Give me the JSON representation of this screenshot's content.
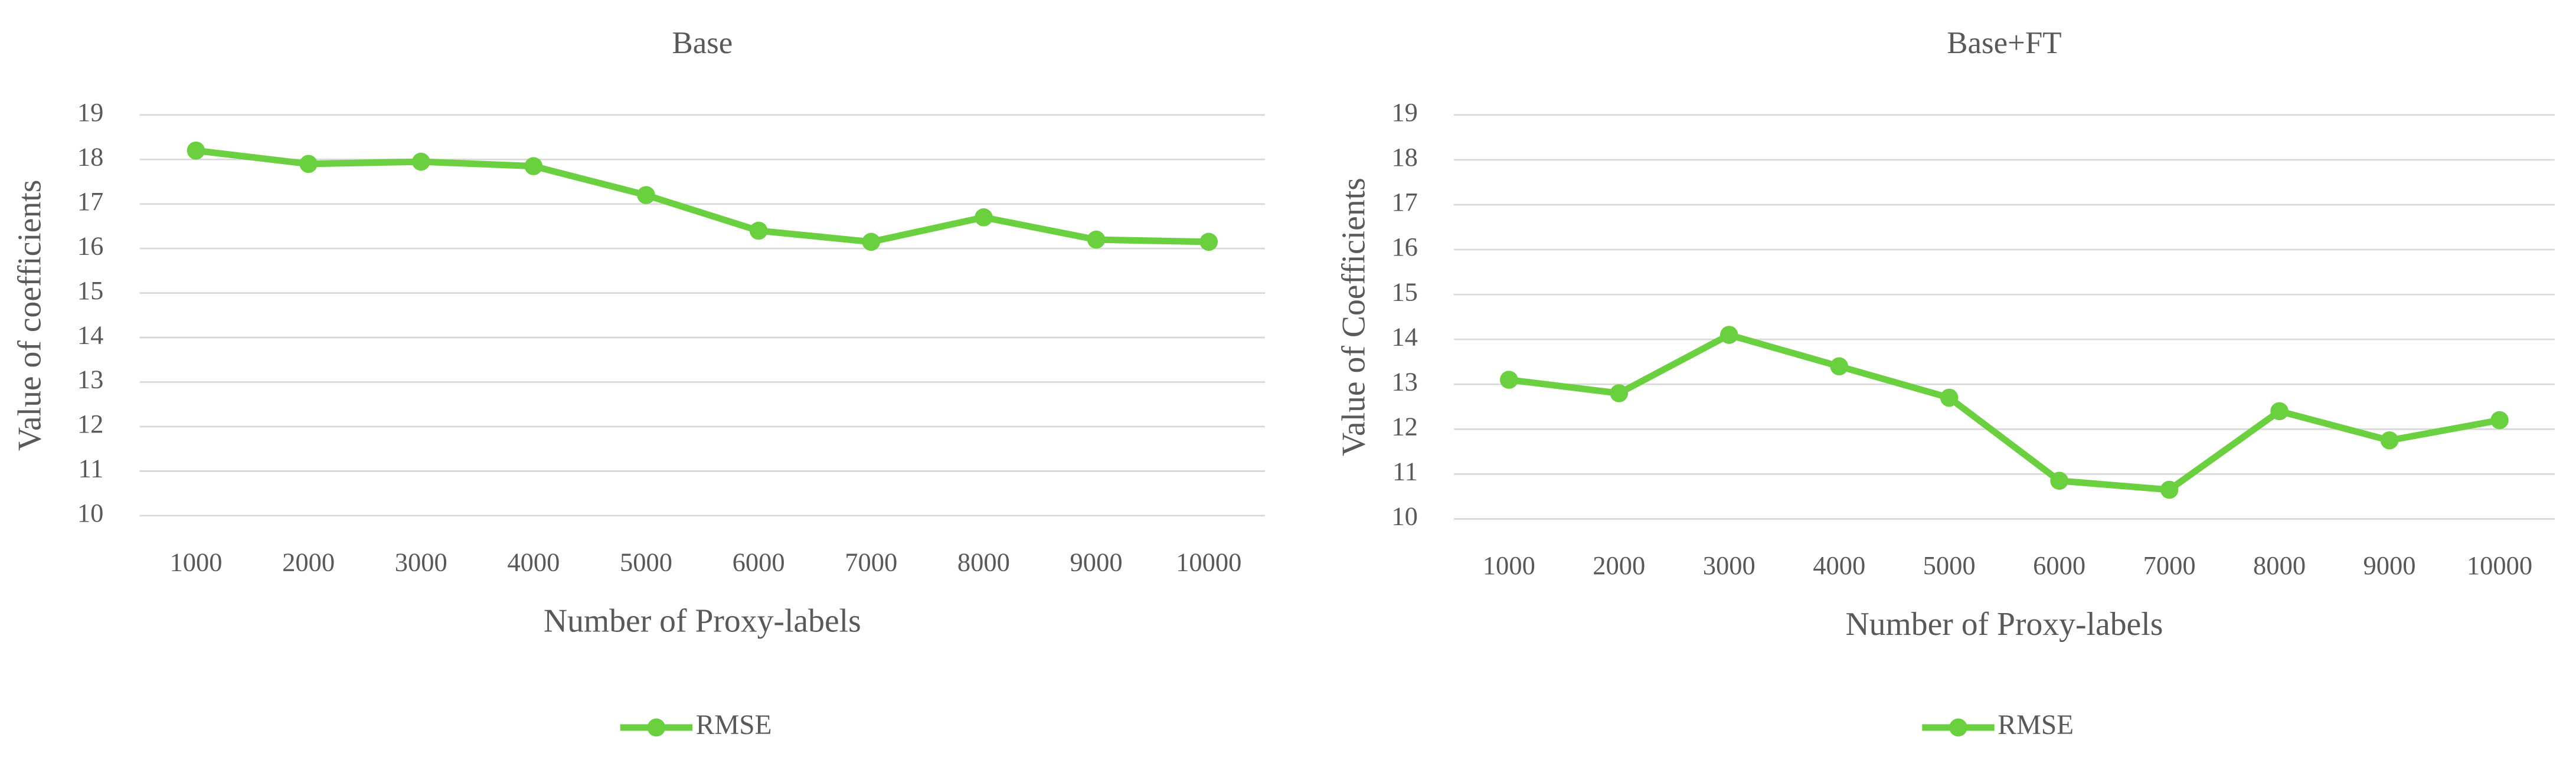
{
  "chart_data": [
    {
      "type": "line",
      "title": "Base",
      "x_label": "Number of Proxy-labels",
      "y_label": "Value of coefficients",
      "categories": [
        "1000",
        "2000",
        "3000",
        "4000",
        "5000",
        "6000",
        "7000",
        "8000",
        "9000",
        "10000"
      ],
      "series": [
        {
          "name": "RMSE",
          "color": "#6ad03f",
          "values": [
            18.2,
            17.9,
            17.95,
            17.85,
            17.2,
            16.4,
            16.15,
            16.7,
            16.2,
            16.15
          ]
        }
      ],
      "ylim": [
        10,
        19
      ],
      "yticks": [
        10,
        11,
        12,
        13,
        14,
        15,
        16,
        17,
        18,
        19
      ],
      "grid": true,
      "legend": "bottom"
    },
    {
      "type": "line",
      "title": "Base+FT",
      "x_label": "Number of Proxy-labels",
      "y_label": "Value of Coefficients",
      "categories": [
        "1000",
        "2000",
        "3000",
        "4000",
        "5000",
        "6000",
        "7000",
        "8000",
        "9000",
        "10000"
      ],
      "series": [
        {
          "name": "RMSE",
          "color": "#6ad03f",
          "values": [
            13.1,
            12.8,
            14.1,
            13.4,
            12.7,
            10.85,
            10.65,
            12.4,
            11.75,
            12.2
          ]
        }
      ],
      "ylim": [
        10,
        19
      ],
      "yticks": [
        10,
        11,
        12,
        13,
        14,
        15,
        16,
        17,
        18,
        19
      ],
      "grid": true,
      "legend": "bottom"
    }
  ]
}
